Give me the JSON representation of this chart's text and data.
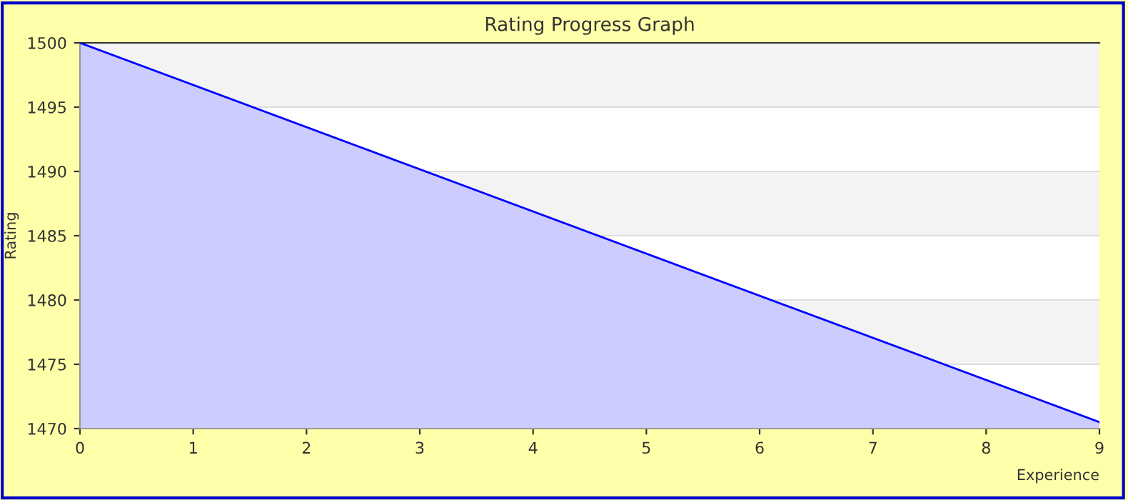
{
  "chart_data": {
    "type": "area",
    "title": "Rating Progress Graph",
    "xlabel": "Experience",
    "ylabel": "Rating",
    "x": [
      0,
      9
    ],
    "series": [
      {
        "color": "#0000ff",
        "values": [
          1500,
          1470.5
        ]
      }
    ],
    "xlim": [
      0,
      9
    ],
    "xticks": [
      0,
      1,
      2,
      3,
      4,
      5,
      6,
      7,
      8,
      9
    ],
    "ylim": [
      1470,
      1500
    ],
    "yticks": [
      1470,
      1475,
      1480,
      1485,
      1490,
      1495,
      1500
    ],
    "bands": [
      {
        "axis": "y",
        "from": 1495,
        "to": 1500,
        "color": "#f3f3f3"
      },
      {
        "axis": "y",
        "from": 1485,
        "to": 1490,
        "color": "#f3f3f3"
      },
      {
        "axis": "y",
        "from": 1475,
        "to": 1480,
        "color": "#f3f3f3"
      }
    ],
    "grid": "y",
    "legend": false
  }
}
